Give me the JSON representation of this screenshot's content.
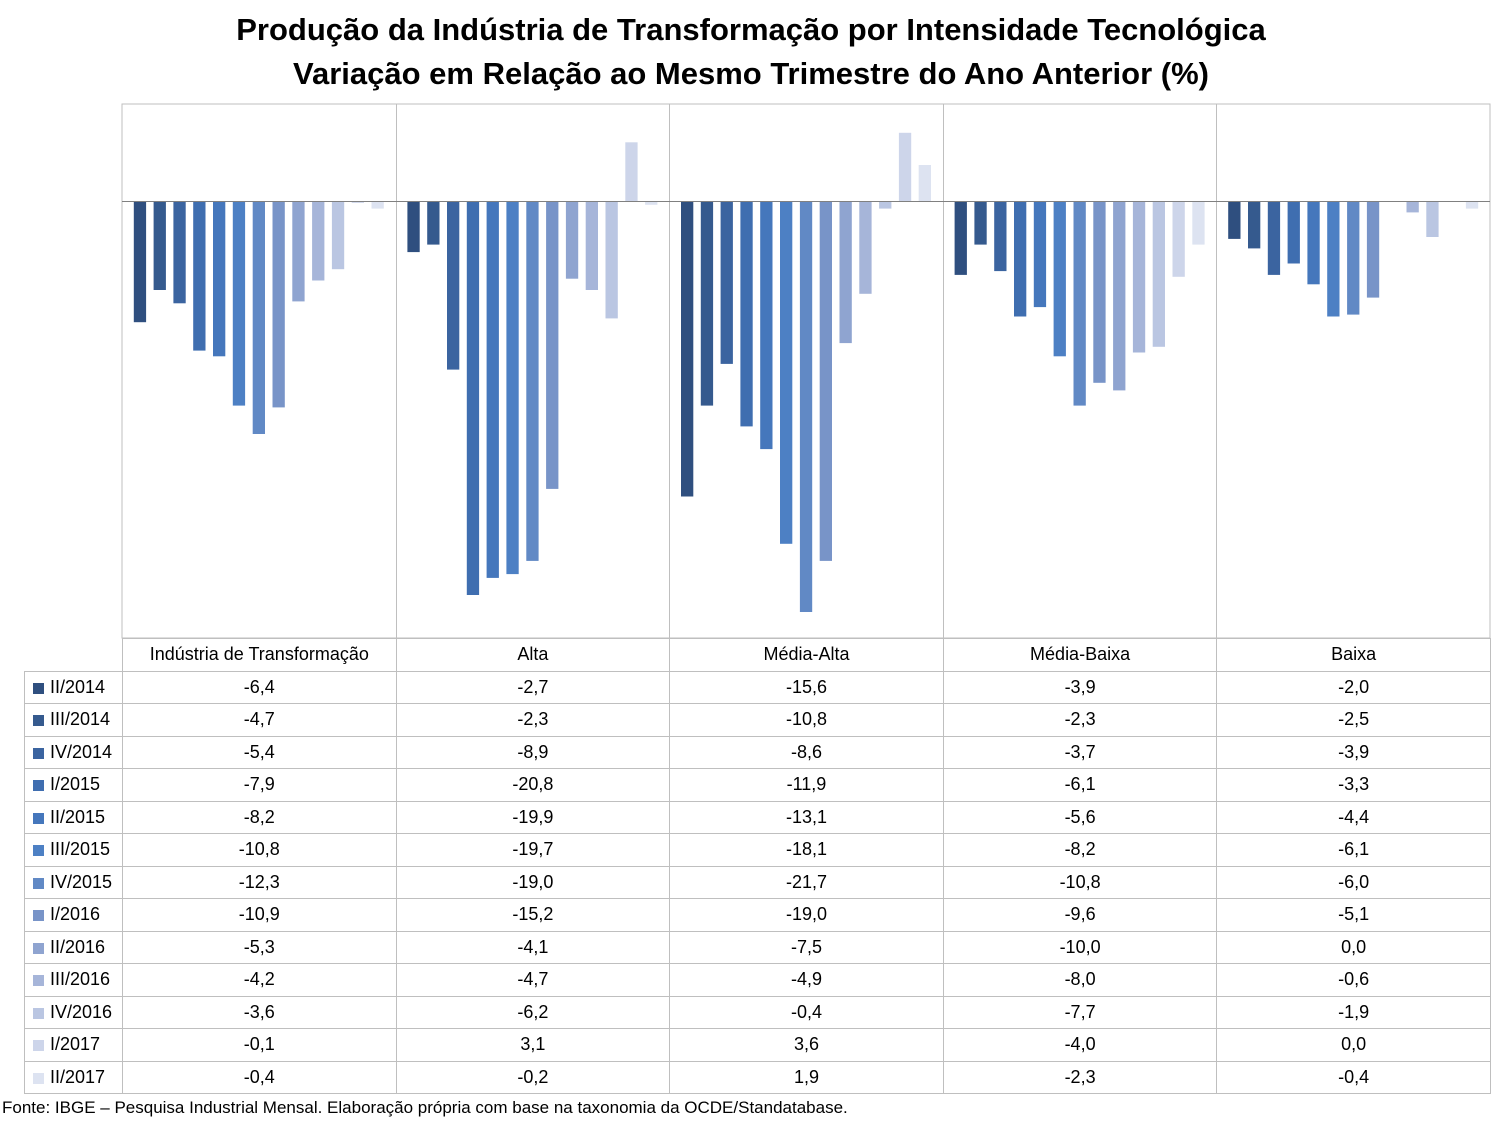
{
  "chart_data": {
    "type": "bar",
    "title": "Produção da Indústria de Transformação por Intensidade Tecnológica",
    "subtitle": "Variação em Relação ao Mesmo Trimestre do Ano Anterior (%)",
    "categories": [
      "Indústria de Transformação",
      "Alta",
      "Média-Alta",
      "Média-Baixa",
      "Baixa"
    ],
    "ylim": [
      -24,
      5
    ],
    "series": [
      {
        "name": "II/2014",
        "color": "#2f4f7f",
        "values": [
          -6.4,
          -2.7,
          -15.6,
          -3.9,
          -2.0
        ],
        "labels": [
          "-6,4",
          "-2,7",
          "-15,6",
          "-3,9",
          "-2,0"
        ]
      },
      {
        "name": "III/2014",
        "color": "#355a8e",
        "values": [
          -4.7,
          -2.3,
          -10.8,
          -2.3,
          -2.5
        ],
        "labels": [
          "-4,7",
          "-2,3",
          "-10,8",
          "-2,3",
          "-2,5"
        ]
      },
      {
        "name": "IV/2014",
        "color": "#3b64a0",
        "values": [
          -5.4,
          -8.9,
          -8.6,
          -3.7,
          -3.9
        ],
        "labels": [
          "-5,4",
          "-8,9",
          "-8,6",
          "-3,7",
          "-3,9"
        ]
      },
      {
        "name": "I/2015",
        "color": "#3f6eb0",
        "values": [
          -7.9,
          -20.8,
          -11.9,
          -6.1,
          -3.3
        ],
        "labels": [
          "-7,9",
          "-20,8",
          "-11,9",
          "-6,1",
          "-3,3"
        ]
      },
      {
        "name": "II/2015",
        "color": "#4577bc",
        "values": [
          -8.2,
          -19.9,
          -13.1,
          -5.6,
          -4.4
        ],
        "labels": [
          "-8,2",
          "-19,9",
          "-13,1",
          "-5,6",
          "-4,4"
        ]
      },
      {
        "name": "III/2015",
        "color": "#4d80c4",
        "values": [
          -10.8,
          -19.7,
          -18.1,
          -8.2,
          -6.1
        ],
        "labels": [
          "-10,8",
          "-19,7",
          "-18,1",
          "-8,2",
          "-6,1"
        ]
      },
      {
        "name": "IV/2015",
        "color": "#6189c5",
        "values": [
          -12.3,
          -19.0,
          -21.7,
          -10.8,
          -6.0
        ],
        "labels": [
          "-12,3",
          "-19,0",
          "-21,7",
          "-10,8",
          "-6,0"
        ]
      },
      {
        "name": "I/2016",
        "color": "#7894c8",
        "values": [
          -10.9,
          -15.2,
          -19.0,
          -9.6,
          -5.1
        ],
        "labels": [
          "-10,9",
          "-15,2",
          "-19,0",
          "-9,6",
          "-5,1"
        ]
      },
      {
        "name": "II/2016",
        "color": "#8fa4d0",
        "values": [
          -5.3,
          -4.1,
          -7.5,
          -10.0,
          0.0
        ],
        "labels": [
          "-5,3",
          "-4,1",
          "-7,5",
          "-10,0",
          "0,0"
        ]
      },
      {
        "name": "III/2016",
        "color": "#a6b5d9",
        "values": [
          -4.2,
          -4.7,
          -4.9,
          -8.0,
          -0.6
        ],
        "labels": [
          "-4,2",
          "-4,7",
          "-4,9",
          "-8,0",
          "-0,6"
        ]
      },
      {
        "name": "IV/2016",
        "color": "#bac6e2",
        "values": [
          -3.6,
          -6.2,
          -0.4,
          -7.7,
          -1.9
        ],
        "labels": [
          "-3,6",
          "-6,2",
          "-0,4",
          "-7,7",
          "-1,9"
        ]
      },
      {
        "name": "I/2017",
        "color": "#cdd5ea",
        "values": [
          -0.1,
          3.1,
          3.6,
          -4.0,
          0.0
        ],
        "labels": [
          "-0,1",
          "3,1",
          "3,6",
          "-4,0",
          "0,0"
        ]
      },
      {
        "name": "II/2017",
        "color": "#dde3f1",
        "values": [
          -0.4,
          -0.2,
          1.9,
          -2.3,
          -0.4
        ],
        "labels": [
          "-0,4",
          "-0,2",
          "1,9",
          "-2,3",
          "-0,4"
        ]
      }
    ],
    "legend": "data-table",
    "grid": false
  },
  "source": "Fonte: IBGE – Pesquisa Industrial Mensal. Elaboração própria com base na taxonomia da OCDE/Standatabase."
}
